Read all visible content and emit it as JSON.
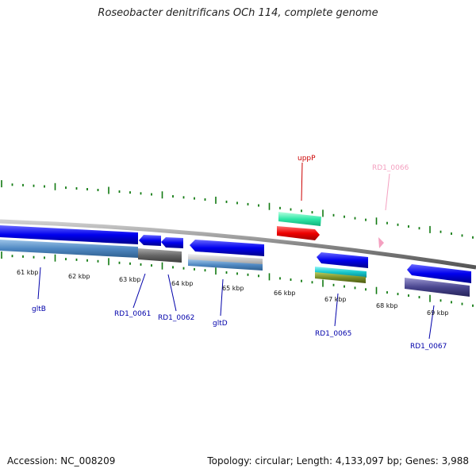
{
  "title": "Roseobacter denitrificans OCh 114, complete genome",
  "footer": {
    "accession": "Accession: NC_008209",
    "stats": "Topology: circular; Length: 4,133,097 bp; Genes: 3,988"
  },
  "kbp_labels": [
    "61 kbp",
    "62 kbp",
    "63 kbp",
    "64 kbp",
    "65 kbp",
    "66 kbp",
    "67 kbp",
    "68 kbp",
    "69 kbp"
  ],
  "genes": [
    {
      "name": "uppP",
      "color": "#cc0000"
    },
    {
      "name": "RD1_0066",
      "color": "#f4a0c0"
    },
    {
      "name": "gltB",
      "color": "#0000aa"
    },
    {
      "name": "RD1_0061",
      "color": "#0000aa"
    },
    {
      "name": "RD1_0062",
      "color": "#0000aa"
    },
    {
      "name": "gltD",
      "color": "#0000aa"
    },
    {
      "name": "RD1_0065",
      "color": "#0000aa"
    },
    {
      "name": "RD1_0067",
      "color": "#0000aa"
    }
  ]
}
